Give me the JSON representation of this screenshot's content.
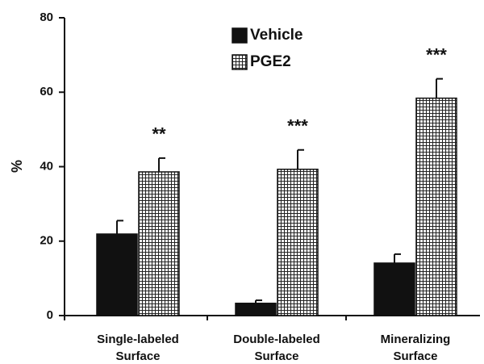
{
  "chart_data": {
    "type": "bar",
    "ylabel": "%",
    "categories": [
      [
        "Single-labeled",
        "Surface"
      ],
      [
        "Double-labeled",
        "Surface"
      ],
      [
        "Mineralizing",
        "Surface"
      ]
    ],
    "series": [
      {
        "name": "Vehicle",
        "color": "#111111",
        "fill": "solid",
        "values": [
          21.9,
          3.3,
          14.1
        ],
        "errors": [
          3.6,
          0.8,
          2.4
        ]
      },
      {
        "name": "PGE2",
        "color": "#111111",
        "fill": "grid",
        "values": [
          38.6,
          39.3,
          58.4
        ],
        "errors": [
          3.7,
          5.2,
          5.2
        ]
      }
    ],
    "annotations": [
      "**",
      "***",
      "***"
    ],
    "ylim": [
      0,
      80
    ],
    "yticks": [
      0,
      20,
      40,
      60,
      80
    ],
    "grid": false,
    "legend": "top"
  }
}
